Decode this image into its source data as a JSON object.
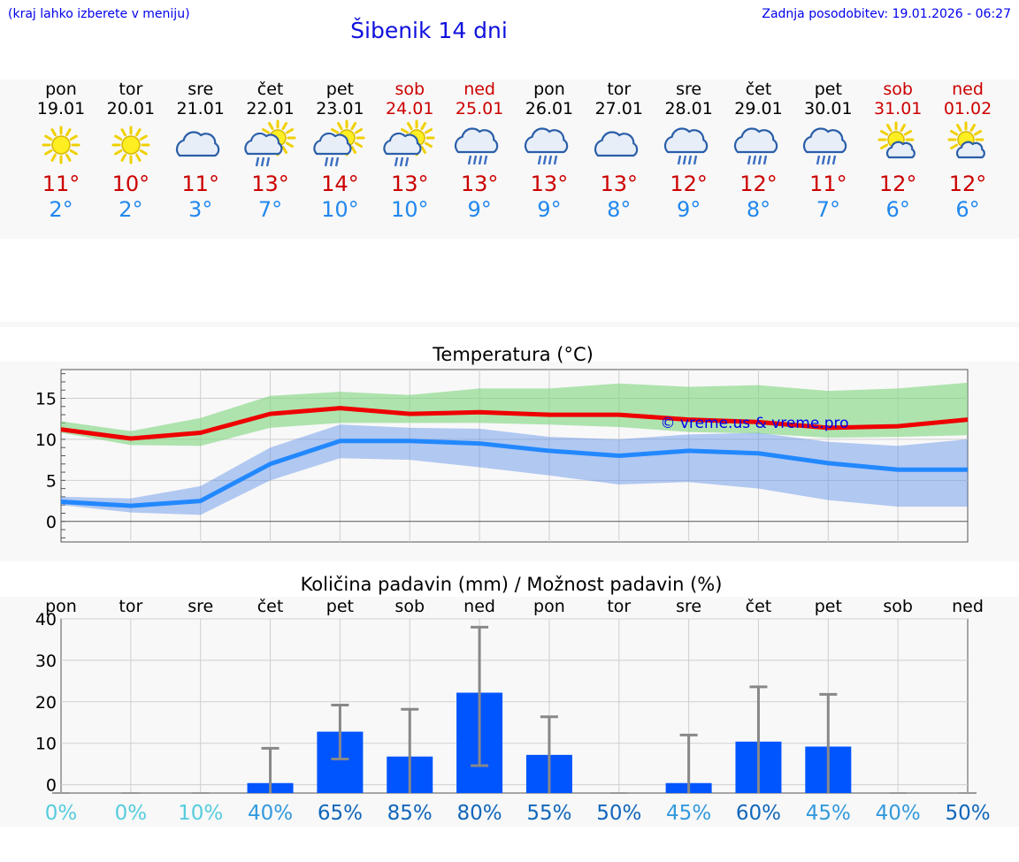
{
  "header": {
    "hint": "(kraj lahko izberete v meniju)",
    "title": "Šibenik 14 dni",
    "updated": "Zadnja posodobitev: 19.01.2026 - 06:27"
  },
  "colors": {
    "max": "#ee0000",
    "min": "#2288ff",
    "bar": "#0055ff",
    "weekend": "#cc0000"
  },
  "days": [
    {
      "name": "pon",
      "date": "19.01",
      "icon": "sun-icon",
      "max": "11°",
      "min": "2°",
      "weekend": false
    },
    {
      "name": "tor",
      "date": "20.01",
      "icon": "sun-icon",
      "max": "10°",
      "min": "2°",
      "weekend": false
    },
    {
      "name": "sre",
      "date": "21.01",
      "icon": "cloud-icon",
      "max": "11°",
      "min": "3°",
      "weekend": false
    },
    {
      "name": "čet",
      "date": "22.01",
      "icon": "sun-cloud-rain-icon",
      "max": "13°",
      "min": "7°",
      "weekend": false
    },
    {
      "name": "pet",
      "date": "23.01",
      "icon": "sun-cloud-rain-icon",
      "max": "14°",
      "min": "10°",
      "weekend": false
    },
    {
      "name": "sob",
      "date": "24.01",
      "icon": "sun-cloud-rain-icon",
      "max": "13°",
      "min": "10°",
      "weekend": true
    },
    {
      "name": "ned",
      "date": "25.01",
      "icon": "cloud-rain-icon",
      "max": "13°",
      "min": "9°",
      "weekend": true
    },
    {
      "name": "pon",
      "date": "26.01",
      "icon": "cloud-rain-icon",
      "max": "13°",
      "min": "9°",
      "weekend": false
    },
    {
      "name": "tor",
      "date": "27.01",
      "icon": "cloud-icon",
      "max": "13°",
      "min": "8°",
      "weekend": false
    },
    {
      "name": "sre",
      "date": "28.01",
      "icon": "cloud-rain-icon",
      "max": "12°",
      "min": "9°",
      "weekend": false
    },
    {
      "name": "čet",
      "date": "29.01",
      "icon": "cloud-rain-icon",
      "max": "12°",
      "min": "8°",
      "weekend": false
    },
    {
      "name": "pet",
      "date": "30.01",
      "icon": "cloud-rain-icon",
      "max": "11°",
      "min": "7°",
      "weekend": false
    },
    {
      "name": "sob",
      "date": "31.01",
      "icon": "sun-cloud-icon",
      "max": "12°",
      "min": "6°",
      "weekend": true
    },
    {
      "name": "ned",
      "date": "01.02",
      "icon": "sun-cloud-icon",
      "max": "12°",
      "min": "6°",
      "weekend": true
    }
  ],
  "chart_data": [
    {
      "type": "line",
      "title": "Temperatura (°C)",
      "watermark": "© vreme.us & vreme.pro",
      "ylim": [
        -2.5,
        18.5
      ],
      "yticks": [
        "0",
        "5",
        "10",
        "15"
      ],
      "x": [
        0,
        1,
        2,
        3,
        4,
        5,
        6,
        7,
        8,
        9,
        10,
        11,
        12,
        13
      ],
      "series": [
        {
          "name": "max",
          "values": [
            11.2,
            10.1,
            10.8,
            13.1,
            13.8,
            13.1,
            13.3,
            13.0,
            13.0,
            12.4,
            12.1,
            11.4,
            11.6,
            12.4
          ]
        },
        {
          "name": "min",
          "values": [
            2.4,
            1.9,
            2.5,
            7.0,
            9.8,
            9.8,
            9.5,
            8.6,
            8.0,
            8.6,
            8.3,
            7.1,
            6.3,
            6.3
          ]
        }
      ],
      "bands": [
        {
          "name": "max-range",
          "low": [
            10.8,
            9.3,
            9.2,
            11.4,
            12.0,
            12.0,
            12.0,
            11.8,
            11.5,
            10.9,
            10.7,
            10.2,
            10.3,
            10.5
          ],
          "high": [
            12.2,
            11.0,
            12.6,
            15.3,
            15.8,
            15.4,
            16.2,
            16.2,
            16.8,
            16.4,
            16.6,
            15.9,
            16.2,
            16.9
          ]
        },
        {
          "name": "min-range",
          "low": [
            2.0,
            1.1,
            0.8,
            5.0,
            7.7,
            7.5,
            6.6,
            5.6,
            4.5,
            4.8,
            4.0,
            2.6,
            1.8,
            1.8
          ]
        },
        {
          "name": "min-range-high",
          "values": [
            3.0,
            2.8,
            4.3,
            9.0,
            11.8,
            11.4,
            11.3,
            10.3,
            10.0,
            10.6,
            10.8,
            9.7,
            9.2,
            10.0
          ]
        }
      ]
    },
    {
      "type": "bar",
      "title": "Količina padavin (mm) / Možnost padavin (%)",
      "ylim": [
        -2,
        40
      ],
      "yticks": [
        "0",
        "10",
        "20",
        "30",
        "40"
      ],
      "categories": [
        "pon",
        "tor",
        "sre",
        "čet",
        "pet",
        "sob",
        "ned",
        "pon",
        "tor",
        "sre",
        "čet",
        "pet",
        "sob",
        "ned"
      ],
      "values": [
        0,
        0,
        0,
        0.4,
        12.8,
        6.8,
        22.2,
        7.2,
        0,
        0.4,
        10.4,
        9.2,
        0,
        0
      ],
      "error_high": [
        0,
        0,
        0,
        8.8,
        19.2,
        18.2,
        38.0,
        16.4,
        0,
        12.0,
        23.6,
        21.8,
        0,
        0
      ],
      "error_low": [
        0,
        0,
        0,
        0,
        6.2,
        0,
        4.6,
        0,
        0,
        0,
        0,
        0,
        0,
        0
      ],
      "probability": [
        "0%",
        "0%",
        "10%",
        "40%",
        "65%",
        "85%",
        "80%",
        "55%",
        "50%",
        "45%",
        "60%",
        "45%",
        "40%",
        "50%"
      ],
      "probability_color": [
        "#55ccdd",
        "#55ccdd",
        "#55ccdd",
        "#3399dd",
        "#1166bb",
        "#1166bb",
        "#1166bb",
        "#1166bb",
        "#1166bb",
        "#3399dd",
        "#1166bb",
        "#3399dd",
        "#3399dd",
        "#1166bb"
      ]
    }
  ]
}
